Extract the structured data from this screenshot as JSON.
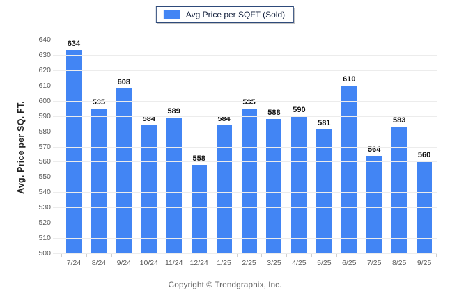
{
  "legend": {
    "label": "Avg Price per SQFT (Sold)"
  },
  "footer": {
    "copyright": "Copyright © Trendgraphix, Inc."
  },
  "colors": {
    "bar": "#4285f4",
    "legend_border": "#2e4a7a",
    "gridline": "#ececec",
    "tick_label": "#595959",
    "value_label": "#111111",
    "footer_text": "#666666"
  },
  "chart_data": {
    "type": "bar",
    "title": "",
    "legend": "Avg Price per SQFT (Sold)",
    "legend_position": "top-center",
    "categories": [
      "7/24",
      "8/24",
      "9/24",
      "10/24",
      "11/24",
      "12/24",
      "1/25",
      "2/25",
      "3/25",
      "4/25",
      "5/25",
      "6/25",
      "7/25",
      "8/25",
      "9/25"
    ],
    "values": [
      634,
      595,
      608,
      584,
      589,
      558,
      584,
      595,
      588,
      590,
      581,
      610,
      564,
      583,
      560
    ],
    "xlabel": "",
    "ylabel": "Avg. Price per SQ. FT.",
    "ylim": [
      500,
      640
    ],
    "ytick_step": 10,
    "yticks": [
      640,
      630,
      620,
      610,
      600,
      590,
      580,
      570,
      560,
      550,
      540,
      530,
      520,
      510,
      500
    ],
    "grid": true,
    "bar_color": "#4285f4"
  }
}
